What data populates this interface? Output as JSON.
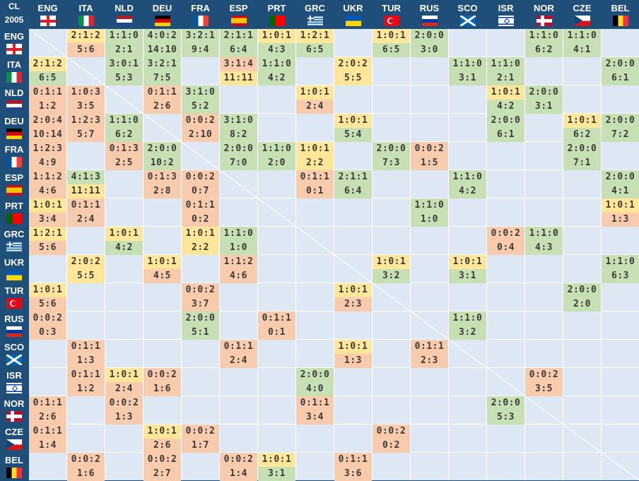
{
  "corner": {
    "line1": "CL",
    "line2": "2005"
  },
  "teams": [
    "ENG",
    "ITA",
    "NLD",
    "DEU",
    "FRA",
    "ESP",
    "PRT",
    "GRC",
    "UKR",
    "TUR",
    "RUS",
    "SCO",
    "ISR",
    "NOR",
    "CZE",
    "BEL"
  ],
  "flag_icons": [
    "england-flag-icon",
    "italy-flag-icon",
    "netherlands-flag-icon",
    "germany-flag-icon",
    "france-flag-icon",
    "spain-flag-icon",
    "portugal-flag-icon",
    "greece-flag-icon",
    "ukraine-flag-icon",
    "turkey-flag-icon",
    "russia-flag-icon",
    "scotland-flag-icon",
    "israel-flag-icon",
    "norway-flag-icon",
    "czechia-flag-icon",
    "belgium-flag-icon"
  ],
  "colors": {
    "header": "#1f4e79",
    "empty": "#dde8f4",
    "win": "#c6e0b4",
    "draw": "#ffe699",
    "loss": "#f8cbad"
  },
  "matrix": [
    [
      null,
      {
        "r": "2:1:2",
        "g": "5:6"
      },
      {
        "r": "1:1:0",
        "g": "2:1"
      },
      {
        "r": "4:0:2",
        "g": "14:10"
      },
      {
        "r": "3:2:1",
        "g": "9:4"
      },
      {
        "r": "2:1:1",
        "g": "6:4"
      },
      {
        "r": "1:0:1",
        "g": "4:3"
      },
      {
        "r": "1:2:1",
        "g": "6:5"
      },
      null,
      {
        "r": "1:0:1",
        "g": "6:5"
      },
      {
        "r": "2:0:0",
        "g": "3:0"
      },
      null,
      null,
      {
        "r": "1:1:0",
        "g": "6:2"
      },
      {
        "r": "1:1:0",
        "g": "4:1"
      },
      null
    ],
    [
      {
        "r": "2:1:2",
        "g": "6:5"
      },
      null,
      {
        "r": "3:0:1",
        "g": "5:3"
      },
      {
        "r": "3:2:1",
        "g": "7:5"
      },
      null,
      {
        "r": "3:1:4",
        "g": "11:11"
      },
      {
        "r": "1:1:0",
        "g": "4:2"
      },
      null,
      {
        "r": "2:0:2",
        "g": "5:5"
      },
      null,
      null,
      {
        "r": "1:1:0",
        "g": "3:1"
      },
      {
        "r": "1:1:0",
        "g": "2:1"
      },
      null,
      null,
      {
        "r": "2:0:0",
        "g": "6:1"
      }
    ],
    [
      {
        "r": "0:1:1",
        "g": "1:2"
      },
      {
        "r": "1:0:3",
        "g": "3:5"
      },
      null,
      {
        "r": "0:1:1",
        "g": "2:6"
      },
      {
        "r": "3:1:0",
        "g": "5:2"
      },
      null,
      null,
      {
        "r": "1:0:1",
        "g": "2:4"
      },
      null,
      null,
      null,
      null,
      {
        "r": "1:0:1",
        "g": "4:2"
      },
      {
        "r": "2:0:0",
        "g": "3:1"
      },
      null,
      null
    ],
    [
      {
        "r": "2:0:4",
        "g": "10:14"
      },
      {
        "r": "1:2:3",
        "g": "5:7"
      },
      {
        "r": "1:1:0",
        "g": "6:2"
      },
      null,
      {
        "r": "0:0:2",
        "g": "2:10"
      },
      {
        "r": "3:1:0",
        "g": "8:2"
      },
      null,
      null,
      {
        "r": "1:0:1",
        "g": "5:4"
      },
      null,
      null,
      null,
      {
        "r": "2:0:0",
        "g": "6:1"
      },
      null,
      {
        "r": "1:0:1",
        "g": "6:2"
      },
      {
        "r": "2:0:0",
        "g": "7:2"
      }
    ],
    [
      {
        "r": "1:2:3",
        "g": "4:9"
      },
      null,
      {
        "r": "0:1:3",
        "g": "2:5"
      },
      {
        "r": "2:0:0",
        "g": "10:2"
      },
      null,
      {
        "r": "2:0:0",
        "g": "7:0"
      },
      {
        "r": "1:1:0",
        "g": "2:0"
      },
      {
        "r": "1:0:1",
        "g": "2:2"
      },
      null,
      {
        "r": "2:0:0",
        "g": "7:3"
      },
      {
        "r": "0:0:2",
        "g": "1:5"
      },
      null,
      null,
      null,
      {
        "r": "2:0:0",
        "g": "7:1"
      },
      null
    ],
    [
      {
        "r": "1:1:2",
        "g": "4:6"
      },
      {
        "r": "4:1:3",
        "g": "11:11"
      },
      null,
      {
        "r": "0:1:3",
        "g": "2:8"
      },
      {
        "r": "0:0:2",
        "g": "0:7"
      },
      null,
      null,
      {
        "r": "0:1:1",
        "g": "0:1"
      },
      {
        "r": "2:1:1",
        "g": "6:4"
      },
      null,
      null,
      {
        "r": "1:1:0",
        "g": "4:2"
      },
      null,
      null,
      null,
      {
        "r": "2:0:0",
        "g": "4:1"
      }
    ],
    [
      {
        "r": "1:0:1",
        "g": "3:4"
      },
      {
        "r": "0:1:1",
        "g": "2:4"
      },
      null,
      null,
      {
        "r": "0:1:1",
        "g": "0:2"
      },
      null,
      null,
      null,
      null,
      null,
      {
        "r": "1:1:0",
        "g": "1:0"
      },
      null,
      null,
      null,
      null,
      {
        "r": "1:0:1",
        "g": "1:3"
      }
    ],
    [
      {
        "r": "1:2:1",
        "g": "5:6"
      },
      null,
      {
        "r": "1:0:1",
        "g": "4:2"
      },
      null,
      {
        "r": "1:0:1",
        "g": "2:2"
      },
      {
        "r": "1:1:0",
        "g": "1:0"
      },
      null,
      null,
      null,
      null,
      null,
      null,
      {
        "r": "0:0:2",
        "g": "0:4"
      },
      {
        "r": "1:1:0",
        "g": "4:3"
      },
      null,
      null
    ],
    [
      null,
      {
        "r": "2:0:2",
        "g": "5:5"
      },
      null,
      {
        "r": "1:0:1",
        "g": "4:5"
      },
      null,
      {
        "r": "1:1:2",
        "g": "4:6"
      },
      null,
      null,
      null,
      {
        "r": "1:0:1",
        "g": "3:2"
      },
      null,
      {
        "r": "1:0:1",
        "g": "3:1"
      },
      null,
      null,
      null,
      {
        "r": "1:1:0",
        "g": "6:3"
      }
    ],
    [
      {
        "r": "1:0:1",
        "g": "5:6"
      },
      null,
      null,
      null,
      {
        "r": "0:0:2",
        "g": "3:7"
      },
      null,
      null,
      null,
      {
        "r": "1:0:1",
        "g": "2:3"
      },
      null,
      null,
      null,
      null,
      null,
      {
        "r": "2:0:0",
        "g": "2:0"
      },
      null
    ],
    [
      {
        "r": "0:0:2",
        "g": "0:3"
      },
      null,
      null,
      null,
      {
        "r": "2:0:0",
        "g": "5:1"
      },
      null,
      {
        "r": "0:1:1",
        "g": "0:1"
      },
      null,
      null,
      null,
      null,
      {
        "r": "1:1:0",
        "g": "3:2"
      },
      null,
      null,
      null,
      null
    ],
    [
      null,
      {
        "r": "0:1:1",
        "g": "1:3"
      },
      null,
      null,
      null,
      {
        "r": "0:1:1",
        "g": "2:4"
      },
      null,
      null,
      {
        "r": "1:0:1",
        "g": "1:3"
      },
      null,
      {
        "r": "0:1:1",
        "g": "2:3"
      },
      null,
      null,
      null,
      null,
      null
    ],
    [
      null,
      {
        "r": "0:1:1",
        "g": "1:2"
      },
      {
        "r": "1:0:1",
        "g": "2:4"
      },
      {
        "r": "0:0:2",
        "g": "1:6"
      },
      null,
      null,
      null,
      {
        "r": "2:0:0",
        "g": "4:0"
      },
      null,
      null,
      null,
      null,
      null,
      {
        "r": "0:0:2",
        "g": "3:5"
      },
      null,
      null
    ],
    [
      {
        "r": "0:1:1",
        "g": "2:6"
      },
      null,
      {
        "r": "0:0:2",
        "g": "1:3"
      },
      null,
      null,
      null,
      null,
      {
        "r": "0:1:1",
        "g": "3:4"
      },
      null,
      null,
      null,
      null,
      {
        "r": "2:0:0",
        "g": "5:3"
      },
      null,
      null,
      null
    ],
    [
      {
        "r": "0:1:1",
        "g": "1:4"
      },
      null,
      null,
      {
        "r": "1:0:1",
        "g": "2:6"
      },
      {
        "r": "0:0:2",
        "g": "1:7"
      },
      null,
      null,
      null,
      null,
      {
        "r": "0:0:2",
        "g": "0:2"
      },
      null,
      null,
      null,
      null,
      null,
      null
    ],
    [
      null,
      {
        "r": "0:0:2",
        "g": "1:6"
      },
      null,
      {
        "r": "0:0:2",
        "g": "2:7"
      },
      null,
      {
        "r": "0:0:2",
        "g": "1:4"
      },
      {
        "r": "1:0:1",
        "g": "3:1"
      },
      null,
      {
        "r": "0:1:1",
        "g": "3:6"
      },
      null,
      null,
      null,
      null,
      null,
      null,
      null
    ]
  ]
}
